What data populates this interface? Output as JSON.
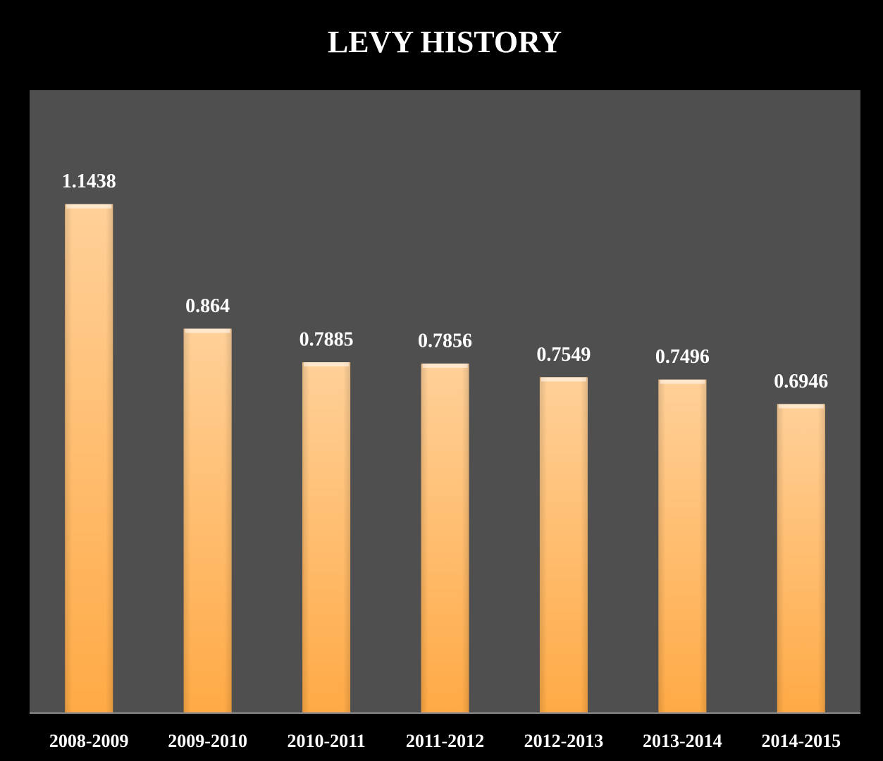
{
  "chart_data": {
    "type": "bar",
    "title": "LEVY HISTORY",
    "categories": [
      "2008-2009",
      "2009-2010",
      "2010-2011",
      "2011-2012",
      "2012-2013",
      "2013-2014",
      "2014-2015"
    ],
    "values": [
      1.1438,
      0.864,
      0.7885,
      0.7856,
      0.7549,
      0.7496,
      0.6946
    ],
    "color": "#ffaa45",
    "ylim": [
      0,
      1.4
    ]
  }
}
